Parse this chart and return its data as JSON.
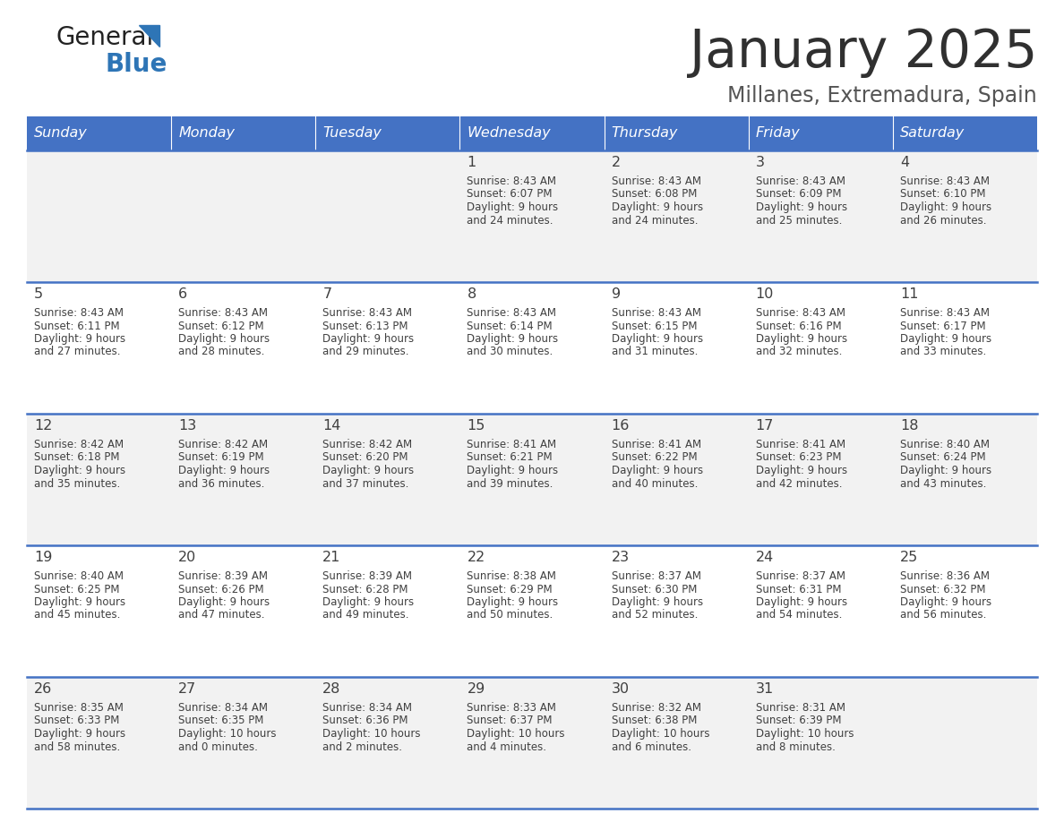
{
  "title": "January 2025",
  "subtitle": "Millanes, Extremadura, Spain",
  "header_color": "#4472C4",
  "header_text_color": "#FFFFFF",
  "day_names": [
    "Sunday",
    "Monday",
    "Tuesday",
    "Wednesday",
    "Thursday",
    "Friday",
    "Saturday"
  ],
  "bg_color": "#FFFFFF",
  "cell_bg_even": "#F2F2F2",
  "cell_bg_odd": "#FFFFFF",
  "row_line_color": "#4472C4",
  "text_color": "#404040",
  "title_color": "#303030",
  "subtitle_color": "#555555",
  "logo_general_color": "#222222",
  "logo_blue_color": "#2E75B6",
  "days": [
    {
      "day": 1,
      "col": 3,
      "row": 0,
      "sunrise": "8:43 AM",
      "sunset": "6:07 PM",
      "daylight_hours": 9,
      "daylight_minutes": 24
    },
    {
      "day": 2,
      "col": 4,
      "row": 0,
      "sunrise": "8:43 AM",
      "sunset": "6:08 PM",
      "daylight_hours": 9,
      "daylight_minutes": 24
    },
    {
      "day": 3,
      "col": 5,
      "row": 0,
      "sunrise": "8:43 AM",
      "sunset": "6:09 PM",
      "daylight_hours": 9,
      "daylight_minutes": 25
    },
    {
      "day": 4,
      "col": 6,
      "row": 0,
      "sunrise": "8:43 AM",
      "sunset": "6:10 PM",
      "daylight_hours": 9,
      "daylight_minutes": 26
    },
    {
      "day": 5,
      "col": 0,
      "row": 1,
      "sunrise": "8:43 AM",
      "sunset": "6:11 PM",
      "daylight_hours": 9,
      "daylight_minutes": 27
    },
    {
      "day": 6,
      "col": 1,
      "row": 1,
      "sunrise": "8:43 AM",
      "sunset": "6:12 PM",
      "daylight_hours": 9,
      "daylight_minutes": 28
    },
    {
      "day": 7,
      "col": 2,
      "row": 1,
      "sunrise": "8:43 AM",
      "sunset": "6:13 PM",
      "daylight_hours": 9,
      "daylight_minutes": 29
    },
    {
      "day": 8,
      "col": 3,
      "row": 1,
      "sunrise": "8:43 AM",
      "sunset": "6:14 PM",
      "daylight_hours": 9,
      "daylight_minutes": 30
    },
    {
      "day": 9,
      "col": 4,
      "row": 1,
      "sunrise": "8:43 AM",
      "sunset": "6:15 PM",
      "daylight_hours": 9,
      "daylight_minutes": 31
    },
    {
      "day": 10,
      "col": 5,
      "row": 1,
      "sunrise": "8:43 AM",
      "sunset": "6:16 PM",
      "daylight_hours": 9,
      "daylight_minutes": 32
    },
    {
      "day": 11,
      "col": 6,
      "row": 1,
      "sunrise": "8:43 AM",
      "sunset": "6:17 PM",
      "daylight_hours": 9,
      "daylight_minutes": 33
    },
    {
      "day": 12,
      "col": 0,
      "row": 2,
      "sunrise": "8:42 AM",
      "sunset": "6:18 PM",
      "daylight_hours": 9,
      "daylight_minutes": 35
    },
    {
      "day": 13,
      "col": 1,
      "row": 2,
      "sunrise": "8:42 AM",
      "sunset": "6:19 PM",
      "daylight_hours": 9,
      "daylight_minutes": 36
    },
    {
      "day": 14,
      "col": 2,
      "row": 2,
      "sunrise": "8:42 AM",
      "sunset": "6:20 PM",
      "daylight_hours": 9,
      "daylight_minutes": 37
    },
    {
      "day": 15,
      "col": 3,
      "row": 2,
      "sunrise": "8:41 AM",
      "sunset": "6:21 PM",
      "daylight_hours": 9,
      "daylight_minutes": 39
    },
    {
      "day": 16,
      "col": 4,
      "row": 2,
      "sunrise": "8:41 AM",
      "sunset": "6:22 PM",
      "daylight_hours": 9,
      "daylight_minutes": 40
    },
    {
      "day": 17,
      "col": 5,
      "row": 2,
      "sunrise": "8:41 AM",
      "sunset": "6:23 PM",
      "daylight_hours": 9,
      "daylight_minutes": 42
    },
    {
      "day": 18,
      "col": 6,
      "row": 2,
      "sunrise": "8:40 AM",
      "sunset": "6:24 PM",
      "daylight_hours": 9,
      "daylight_minutes": 43
    },
    {
      "day": 19,
      "col": 0,
      "row": 3,
      "sunrise": "8:40 AM",
      "sunset": "6:25 PM",
      "daylight_hours": 9,
      "daylight_minutes": 45
    },
    {
      "day": 20,
      "col": 1,
      "row": 3,
      "sunrise": "8:39 AM",
      "sunset": "6:26 PM",
      "daylight_hours": 9,
      "daylight_minutes": 47
    },
    {
      "day": 21,
      "col": 2,
      "row": 3,
      "sunrise": "8:39 AM",
      "sunset": "6:28 PM",
      "daylight_hours": 9,
      "daylight_minutes": 49
    },
    {
      "day": 22,
      "col": 3,
      "row": 3,
      "sunrise": "8:38 AM",
      "sunset": "6:29 PM",
      "daylight_hours": 9,
      "daylight_minutes": 50
    },
    {
      "day": 23,
      "col": 4,
      "row": 3,
      "sunrise": "8:37 AM",
      "sunset": "6:30 PM",
      "daylight_hours": 9,
      "daylight_minutes": 52
    },
    {
      "day": 24,
      "col": 5,
      "row": 3,
      "sunrise": "8:37 AM",
      "sunset": "6:31 PM",
      "daylight_hours": 9,
      "daylight_minutes": 54
    },
    {
      "day": 25,
      "col": 6,
      "row": 3,
      "sunrise": "8:36 AM",
      "sunset": "6:32 PM",
      "daylight_hours": 9,
      "daylight_minutes": 56
    },
    {
      "day": 26,
      "col": 0,
      "row": 4,
      "sunrise": "8:35 AM",
      "sunset": "6:33 PM",
      "daylight_hours": 9,
      "daylight_minutes": 58
    },
    {
      "day": 27,
      "col": 1,
      "row": 4,
      "sunrise": "8:34 AM",
      "sunset": "6:35 PM",
      "daylight_hours": 10,
      "daylight_minutes": 0
    },
    {
      "day": 28,
      "col": 2,
      "row": 4,
      "sunrise": "8:34 AM",
      "sunset": "6:36 PM",
      "daylight_hours": 10,
      "daylight_minutes": 2
    },
    {
      "day": 29,
      "col": 3,
      "row": 4,
      "sunrise": "8:33 AM",
      "sunset": "6:37 PM",
      "daylight_hours": 10,
      "daylight_minutes": 4
    },
    {
      "day": 30,
      "col": 4,
      "row": 4,
      "sunrise": "8:32 AM",
      "sunset": "6:38 PM",
      "daylight_hours": 10,
      "daylight_minutes": 6
    },
    {
      "day": 31,
      "col": 5,
      "row": 4,
      "sunrise": "8:31 AM",
      "sunset": "6:39 PM",
      "daylight_hours": 10,
      "daylight_minutes": 8
    }
  ]
}
